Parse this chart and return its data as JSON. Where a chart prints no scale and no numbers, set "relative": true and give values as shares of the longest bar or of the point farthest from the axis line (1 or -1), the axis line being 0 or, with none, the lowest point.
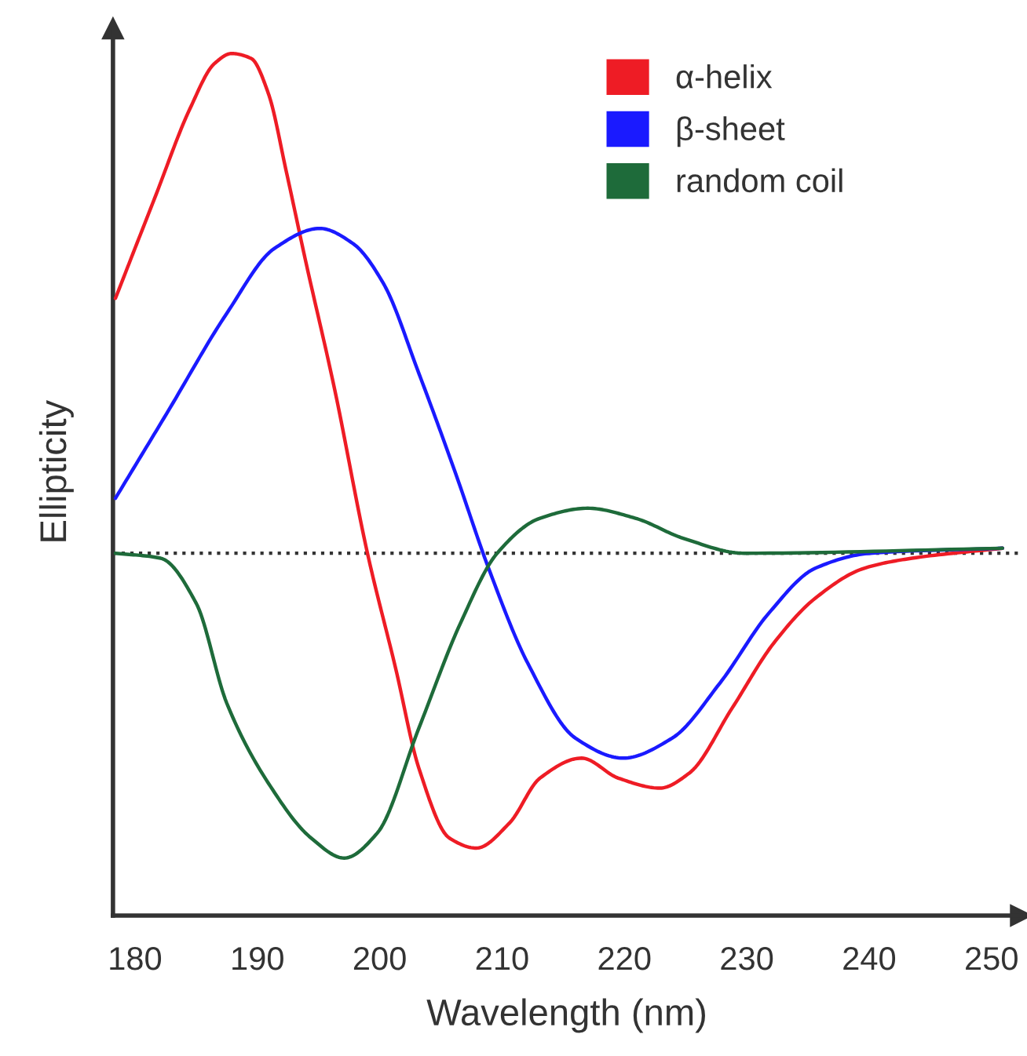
{
  "chart_data": {
    "type": "line",
    "relative": true,
    "xlabel": "Wavelength (nm)",
    "ylabel": "Ellipticity",
    "xlim": [
      178.2,
      252.4
    ],
    "xticks": [
      180,
      190,
      200,
      210,
      220,
      230,
      240,
      250
    ],
    "legend": "top right",
    "grid": false,
    "line_style": "solid",
    "marker": "none",
    "ref_lines": [
      {
        "axis": "y",
        "value": 0,
        "line_style": "dotted",
        "color": "#333333"
      }
    ],
    "series": [
      {
        "name": "α-helix",
        "color": "#ee1c25",
        "x": [
          178.4,
          181.6,
          184.5,
          186.5,
          187.9,
          189.5,
          190.9,
          192.4,
          193.9,
          196.3,
          199.0,
          201.3,
          203.2,
          205.7,
          207.9,
          210.6,
          213.1,
          216.5,
          219.5,
          222.9,
          225.3,
          228.8,
          232.2,
          235.6,
          239.6,
          243.5,
          250.9
        ],
        "values": [
          0.51,
          0.71,
          0.89,
          0.98,
          1.0,
          0.99,
          0.92,
          0.76,
          0.59,
          0.33,
          0,
          -0.23,
          -0.43,
          -0.57,
          -0.59,
          -0.54,
          -0.45,
          -0.41,
          -0.45,
          -0.47,
          -0.44,
          -0.31,
          -0.18,
          -0.09,
          -0.03,
          -0.01,
          0.01
        ]
      },
      {
        "name": "β-sheet",
        "color": "#1a1aff",
        "x": [
          178.4,
          182.6,
          187.5,
          191.4,
          195.1,
          197.8,
          200.3,
          203.2,
          206.2,
          208.9,
          212.1,
          216.0,
          219.9,
          223.9,
          227.8,
          231.8,
          235.6,
          240.1,
          250.9
        ],
        "values": [
          0.11,
          0.28,
          0.48,
          0.61,
          0.65,
          0.62,
          0.54,
          0.36,
          0.16,
          -0.03,
          -0.22,
          -0.37,
          -0.41,
          -0.37,
          -0.26,
          -0.12,
          -0.03,
          0,
          0.01
        ]
      },
      {
        "name": "random coil",
        "color": "#1e6b3a",
        "x": [
          178.4,
          182.1,
          185.0,
          187.5,
          190.9,
          194.4,
          197.1,
          199.8,
          203.2,
          206.6,
          209.6,
          213.1,
          217.0,
          220.9,
          224.8,
          229.8,
          250.9
        ],
        "values": [
          0,
          -0.01,
          -0.1,
          -0.3,
          -0.46,
          -0.57,
          -0.61,
          -0.56,
          -0.35,
          -0.14,
          0,
          0.07,
          0.09,
          0.07,
          0.03,
          0,
          0.01
        ]
      }
    ]
  }
}
